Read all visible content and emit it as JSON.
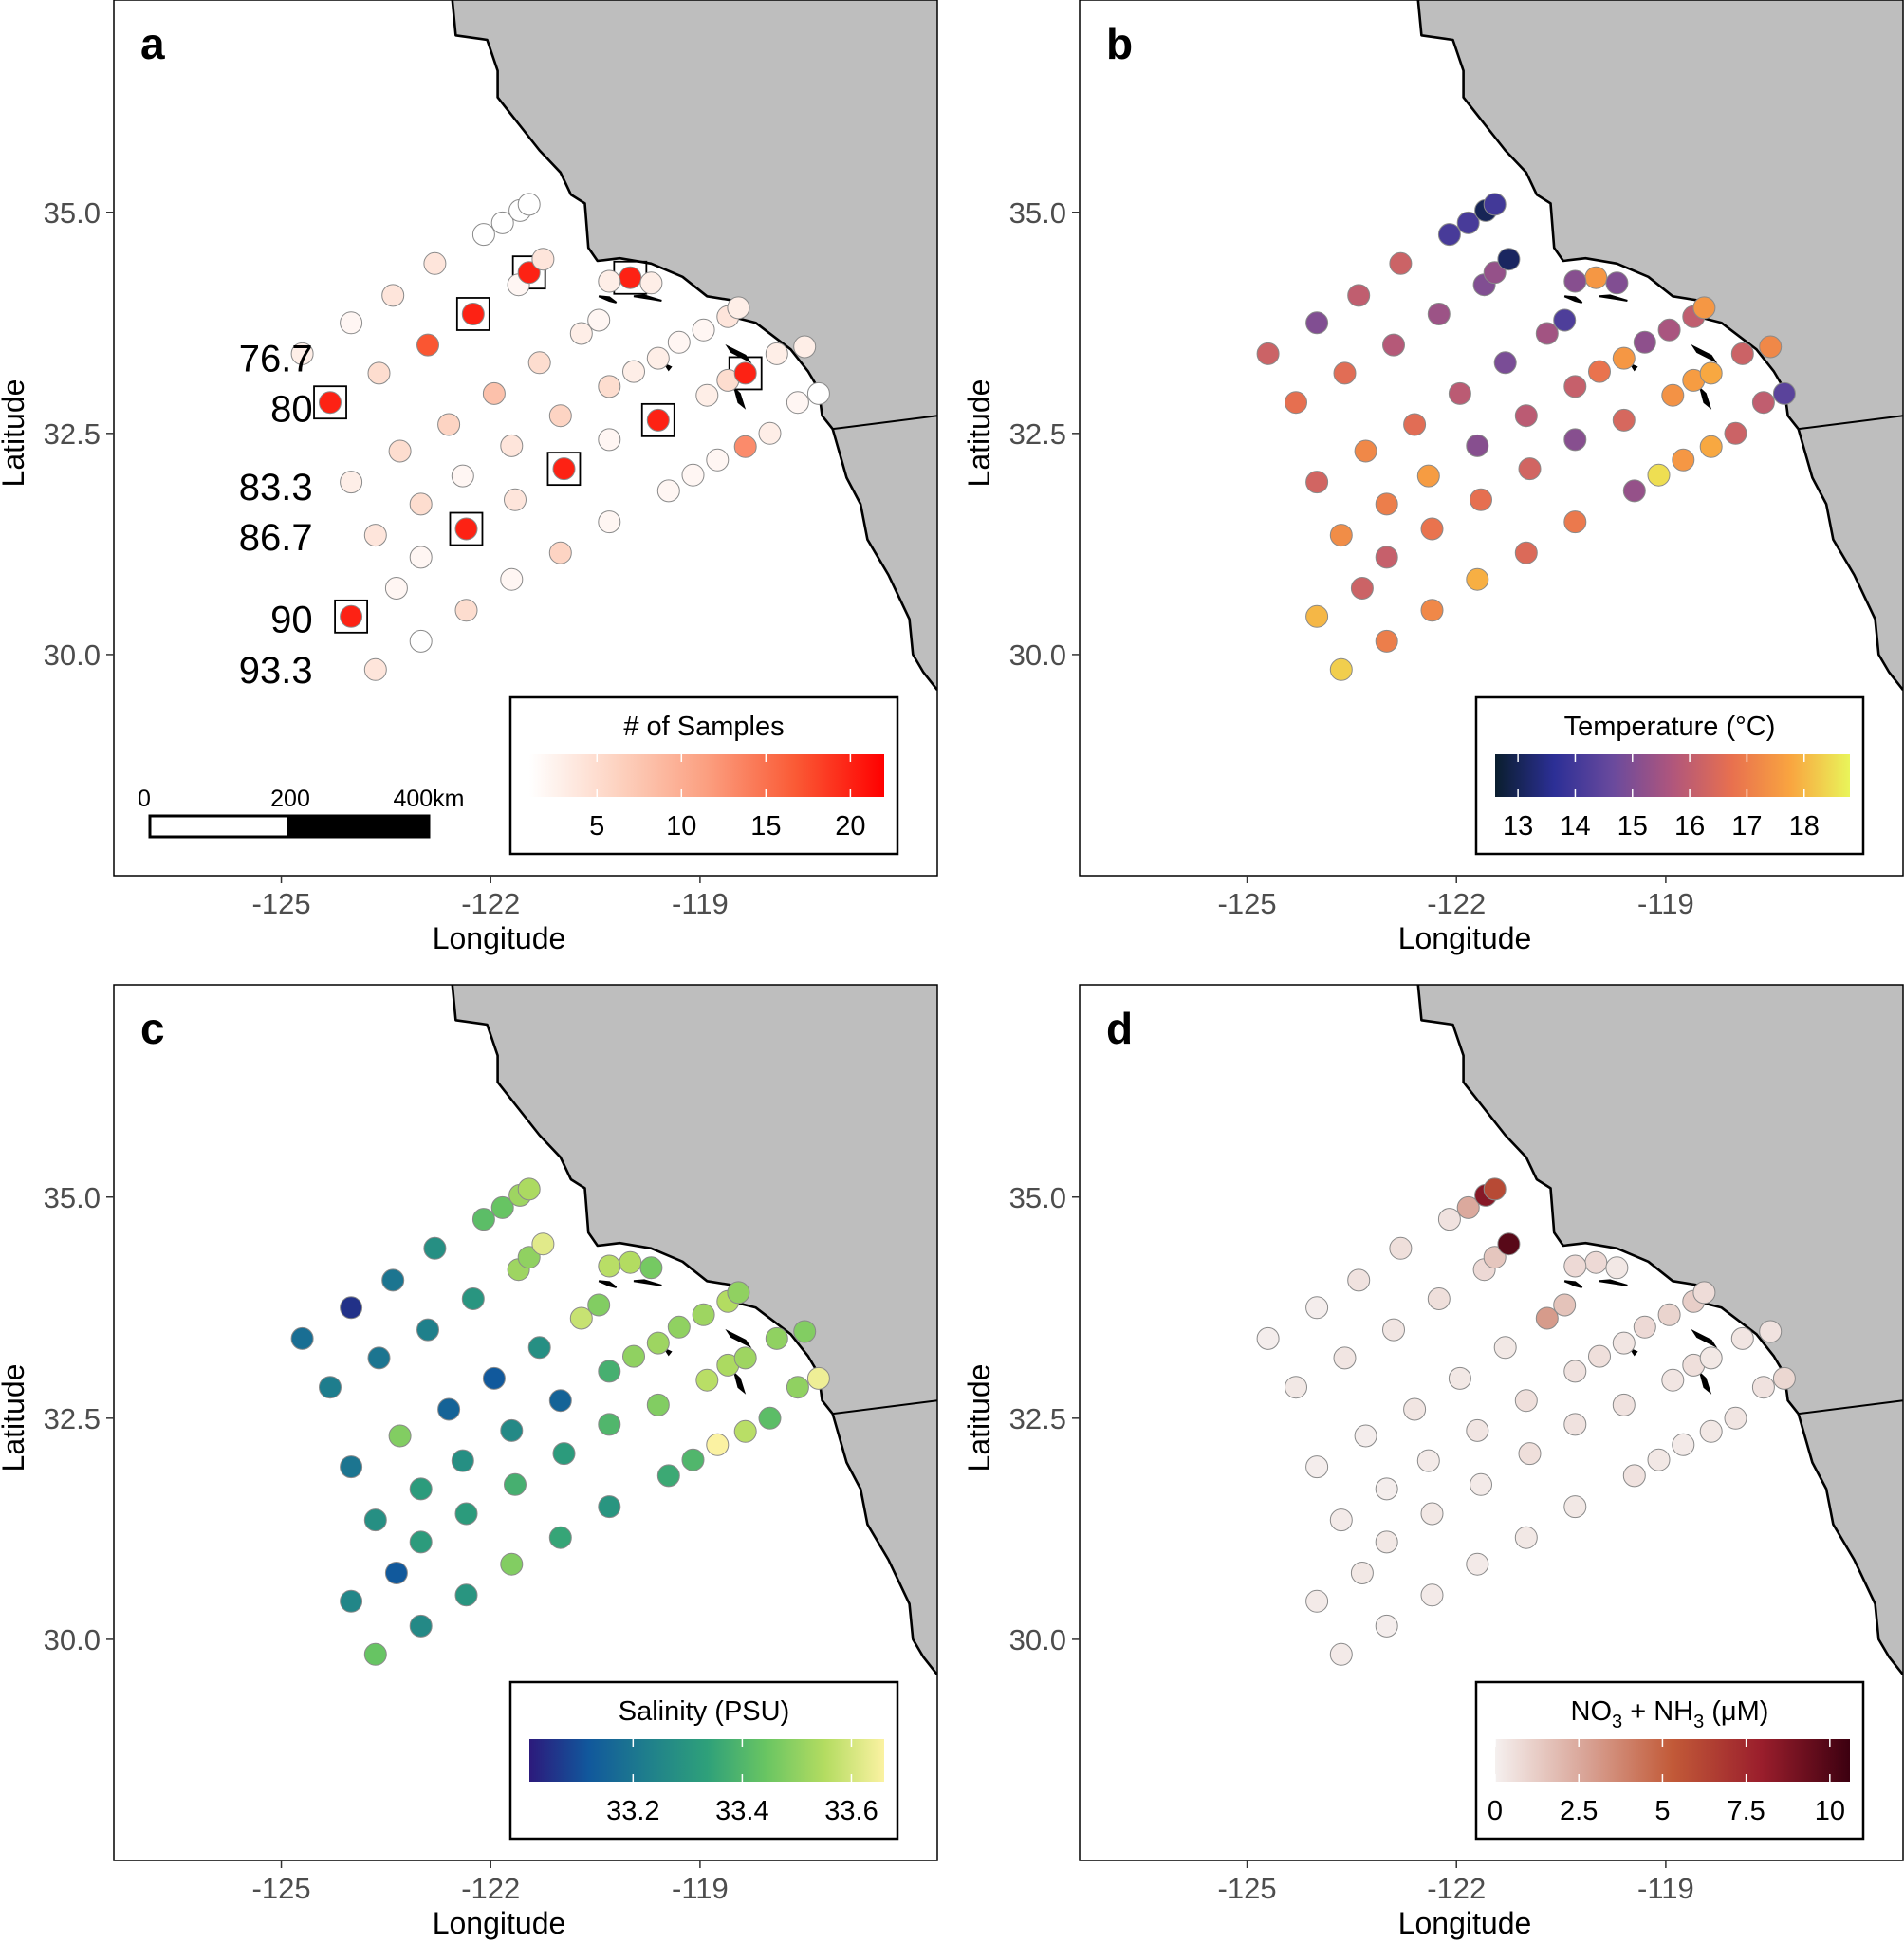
{
  "chart_data": [
    {
      "panel": "a",
      "type": "scatter",
      "xlabel": "Longitude",
      "ylabel": "Latitude",
      "xlim": [
        -127.4,
        -115.6
      ],
      "ylim": [
        27.5,
        37.4
      ],
      "xticks": [
        "-125",
        "-122",
        "-119"
      ],
      "yticks": [
        "30.0",
        "32.5",
        "35.0"
      ],
      "legend": {
        "title": "# of Samples",
        "ticks": [
          "5",
          "10",
          "15",
          "20"
        ],
        "tick_values": [
          5,
          10,
          15,
          20
        ],
        "range": [
          1,
          22
        ],
        "colors": [
          "#ffffff",
          "#fdd2c0",
          "#fb9f80",
          "#fa5a35",
          "#ff0000"
        ],
        "position": "bottom-right"
      },
      "scale_bar": {
        "labels": [
          "0",
          "200",
          "400km"
        ]
      },
      "line_labels": [
        {
          "text": "76.7",
          "lon": -124.55,
          "lat": 33.35
        },
        {
          "text": "80",
          "lon": -124.55,
          "lat": 32.78
        },
        {
          "text": "83.3",
          "lon": -124.55,
          "lat": 31.9
        },
        {
          "text": "86.7",
          "lon": -124.55,
          "lat": 31.33
        },
        {
          "text": "90",
          "lon": -124.55,
          "lat": 30.4
        },
        {
          "text": "93.3",
          "lon": -124.55,
          "lat": 29.83
        }
      ],
      "value_key": "samples"
    },
    {
      "panel": "b",
      "type": "scatter",
      "xlabel": "Longitude",
      "ylabel": "Latitude",
      "xlim": [
        -127.4,
        -115.6
      ],
      "ylim": [
        27.5,
        37.4
      ],
      "xticks": [
        "-125",
        "-122",
        "-119"
      ],
      "yticks": [
        "30.0",
        "32.5",
        "35.0"
      ],
      "legend": {
        "title": "Temperature (°C)",
        "ticks": [
          "13",
          "14",
          "15",
          "16",
          "17",
          "18"
        ],
        "tick_values": [
          13,
          14,
          15,
          16,
          17,
          18
        ],
        "range": [
          12.6,
          18.8
        ],
        "colors": [
          "#0a1e2e",
          "#2c2f96",
          "#6a4a9d",
          "#b0567c",
          "#e8704f",
          "#f9a540",
          "#e9f55a"
        ],
        "position": "bottom-right"
      },
      "value_key": "temperature"
    },
    {
      "panel": "c",
      "type": "scatter",
      "xlabel": "Longitude",
      "ylabel": "Latitude",
      "xlim": [
        -127.4,
        -115.6
      ],
      "ylim": [
        27.5,
        37.4
      ],
      "xticks": [
        "-125",
        "-122",
        "-119"
      ],
      "yticks": [
        "30.0",
        "32.5",
        "35.0"
      ],
      "legend": {
        "title": "Salinity (PSU)",
        "ticks": [
          "33.2",
          "33.4",
          "33.6"
        ],
        "tick_values": [
          33.2,
          33.4,
          33.6
        ],
        "range": [
          33.01,
          33.66
        ],
        "colors": [
          "#2c1a7c",
          "#11589c",
          "#1f7f8c",
          "#2ea07a",
          "#69c562",
          "#b4dc61",
          "#fbf2a2"
        ],
        "position": "bottom-right"
      },
      "value_key": "salinity"
    },
    {
      "panel": "d",
      "type": "scatter",
      "xlabel": "Longitude",
      "ylabel": "Latitude",
      "xlim": [
        -127.4,
        -115.6
      ],
      "ylim": [
        27.5,
        37.4
      ],
      "xticks": [
        "-125",
        "-122",
        "-119"
      ],
      "yticks": [
        "30.0",
        "32.5",
        "35.0"
      ],
      "legend": {
        "title_main": "NO",
        "title_sub1": "3",
        "title_mid": " +  NH",
        "title_sub2": "3",
        "title_end": " (μM)",
        "ticks": [
          "0",
          "2.5",
          "5",
          "7.5",
          "10"
        ],
        "tick_values": [
          0,
          2.5,
          5,
          7.5,
          10
        ],
        "range": [
          0,
          10.6
        ],
        "colors": [
          "#f5f0ef",
          "#d9a598",
          "#c25a38",
          "#9a1e2c",
          "#3c0010"
        ],
        "position": "bottom-right"
      },
      "value_key": "nitrogen"
    }
  ],
  "stations": [
    {
      "lon": -124.7,
      "lat": 33.4,
      "samples": 3,
      "temperature": 16.2,
      "salinity": 33.18,
      "nitrogen": 0.1
    },
    {
      "lon": -124.0,
      "lat": 33.75,
      "samples": 2,
      "temperature": 15.0,
      "salinity": 33.05,
      "nitrogen": 0.1
    },
    {
      "lon": -123.4,
      "lat": 34.06,
      "samples": 4,
      "temperature": 16.0,
      "salinity": 33.2,
      "nitrogen": 0.5
    },
    {
      "lon": -122.8,
      "lat": 34.42,
      "samples": 4,
      "temperature": 16.2,
      "salinity": 33.28,
      "nitrogen": 0.6
    },
    {
      "lon": -122.1,
      "lat": 34.75,
      "samples": 1,
      "temperature": 14.1,
      "salinity": 33.42,
      "nitrogen": 0.5
    },
    {
      "lon": -121.83,
      "lat": 34.88,
      "samples": 1,
      "temperature": 14.1,
      "salinity": 33.44,
      "nitrogen": 2.5
    },
    {
      "lon": -121.58,
      "lat": 35.02,
      "samples": 1,
      "temperature": 13.0,
      "salinity": 33.52,
      "nitrogen": 8.5
    },
    {
      "lon": -121.45,
      "lat": 35.09,
      "samples": 1,
      "temperature": 14.0,
      "salinity": 33.54,
      "nitrogen": 6.0
    },
    {
      "lon": -124.3,
      "lat": 32.85,
      "samples": 20,
      "temperature": 16.7,
      "salinity": 33.22,
      "nitrogen": 0.3
    },
    {
      "lon": -123.6,
      "lat": 33.18,
      "samples": 5,
      "temperature": 16.6,
      "salinity": 33.2,
      "nitrogen": 0.4
    },
    {
      "lon": -122.9,
      "lat": 33.5,
      "samples": 17,
      "temperature": 15.8,
      "salinity": 33.23,
      "nitrogen": 0.4
    },
    {
      "lon": -122.25,
      "lat": 33.85,
      "samples": 20,
      "temperature": 15.4,
      "salinity": 33.3,
      "nitrogen": 0.6
    },
    {
      "lon": -121.6,
      "lat": 34.18,
      "samples": 2,
      "temperature": 15.0,
      "salinity": 33.52,
      "nitrogen": 0.8
    },
    {
      "lon": -121.45,
      "lat": 34.32,
      "samples": 20,
      "temperature": 15.3,
      "salinity": 33.5,
      "nitrogen": 1.5
    },
    {
      "lon": -121.25,
      "lat": 34.47,
      "samples": 4,
      "temperature": 13.1,
      "salinity": 33.62,
      "nitrogen": 9.8
    },
    {
      "lon": -124.0,
      "lat": 31.95,
      "samples": 3,
      "temperature": 16.3,
      "salinity": 33.2,
      "nitrogen": 0.1
    },
    {
      "lon": -123.3,
      "lat": 32.3,
      "samples": 5,
      "temperature": 17.2,
      "salinity": 33.48,
      "nitrogen": 0.1
    },
    {
      "lon": -122.6,
      "lat": 32.6,
      "samples": 6,
      "temperature": 16.6,
      "salinity": 33.15,
      "nitrogen": 0.4
    },
    {
      "lon": -121.95,
      "lat": 32.95,
      "samples": 8,
      "temperature": 15.9,
      "salinity": 33.12,
      "nitrogen": 0.3
    },
    {
      "lon": -121.3,
      "lat": 33.3,
      "samples": 5,
      "temperature": 14.9,
      "salinity": 33.28,
      "nitrogen": 0.3
    },
    {
      "lon": -120.7,
      "lat": 33.63,
      "samples": 3,
      "temperature": 15.5,
      "salinity": 33.58,
      "nitrogen": 3.0
    },
    {
      "lon": -120.45,
      "lat": 33.78,
      "samples": 2,
      "temperature": 14.2,
      "salinity": 33.48,
      "nitrogen": 1.6
    },
    {
      "lon": -120.0,
      "lat": 34.26,
      "samples": 20,
      "temperature": 17.5,
      "salinity": 33.55,
      "nitrogen": 0.8
    },
    {
      "lon": -120.3,
      "lat": 34.22,
      "samples": 3,
      "temperature": 15.1,
      "salinity": 33.56,
      "nitrogen": 0.8
    },
    {
      "lon": -119.7,
      "lat": 34.2,
      "samples": 3,
      "temperature": 15.0,
      "salinity": 33.46,
      "nitrogen": 0.3
    },
    {
      "lon": -123.0,
      "lat": 31.7,
      "samples": 5,
      "temperature": 17.0,
      "salinity": 33.32,
      "nitrogen": 0.1
    },
    {
      "lon": -122.4,
      "lat": 32.02,
      "samples": 2,
      "temperature": 17.6,
      "salinity": 33.28,
      "nitrogen": 0.2
    },
    {
      "lon": -121.7,
      "lat": 32.36,
      "samples": 4,
      "temperature": 15.1,
      "salinity": 33.26,
      "nitrogen": 0.4
    },
    {
      "lon": -121.0,
      "lat": 32.7,
      "samples": 6,
      "temperature": 15.9,
      "salinity": 33.15,
      "nitrogen": 0.6
    },
    {
      "lon": -120.3,
      "lat": 33.03,
      "samples": 5,
      "temperature": 16.1,
      "salinity": 33.38,
      "nitrogen": 0.5
    },
    {
      "lon": -119.95,
      "lat": 33.2,
      "samples": 3,
      "temperature": 16.8,
      "salinity": 33.5,
      "nitrogen": 0.6
    },
    {
      "lon": -119.6,
      "lat": 33.35,
      "samples": 3,
      "temperature": 17.5,
      "salinity": 33.52,
      "nitrogen": 0.4
    },
    {
      "lon": -119.3,
      "lat": 33.53,
      "samples": 2,
      "temperature": 15.2,
      "salinity": 33.5,
      "nitrogen": 0.8
    },
    {
      "lon": -118.95,
      "lat": 33.67,
      "samples": 2,
      "temperature": 15.6,
      "salinity": 33.52,
      "nitrogen": 1.0
    },
    {
      "lon": -118.6,
      "lat": 33.82,
      "samples": 4,
      "temperature": 16.0,
      "salinity": 33.55,
      "nitrogen": 1.2
    },
    {
      "lon": -118.45,
      "lat": 33.92,
      "samples": 3,
      "temperature": 17.5,
      "salinity": 33.5,
      "nitrogen": 0.7
    },
    {
      "lon": -123.65,
      "lat": 31.35,
      "samples": 4,
      "temperature": 17.3,
      "salinity": 33.28,
      "nitrogen": 0.2
    },
    {
      "lon": -123.0,
      "lat": 31.1,
      "samples": 2,
      "temperature": 16.1,
      "salinity": 33.32,
      "nitrogen": 0.3
    },
    {
      "lon": -122.35,
      "lat": 31.42,
      "samples": 20,
      "temperature": 16.8,
      "salinity": 33.32,
      "nitrogen": 0.3
    },
    {
      "lon": -121.65,
      "lat": 31.75,
      "samples": 4,
      "temperature": 16.7,
      "salinity": 33.38,
      "nitrogen": 0.2
    },
    {
      "lon": -120.95,
      "lat": 32.1,
      "samples": 20,
      "temperature": 16.3,
      "salinity": 33.32,
      "nitrogen": 0.6
    },
    {
      "lon": -120.3,
      "lat": 32.43,
      "samples": 2,
      "temperature": 15.1,
      "salinity": 33.4,
      "nitrogen": 0.5
    },
    {
      "lon": -119.6,
      "lat": 32.65,
      "samples": 20,
      "temperature": 16.4,
      "salinity": 33.48,
      "nitrogen": 0.5
    },
    {
      "lon": -118.9,
      "lat": 32.93,
      "samples": 3,
      "temperature": 17.4,
      "salinity": 33.56,
      "nitrogen": 0.4
    },
    {
      "lon": -118.6,
      "lat": 33.1,
      "samples": 5,
      "temperature": 17.6,
      "salinity": 33.54,
      "nitrogen": 0.6
    },
    {
      "lon": -118.35,
      "lat": 33.18,
      "samples": 20,
      "temperature": 17.8,
      "salinity": 33.52,
      "nitrogen": 0.3
    },
    {
      "lon": -117.9,
      "lat": 33.4,
      "samples": 3,
      "temperature": 16.2,
      "salinity": 33.5,
      "nitrogen": 0.4
    },
    {
      "lon": -117.5,
      "lat": 33.48,
      "samples": 3,
      "temperature": 17.2,
      "salinity": 33.48,
      "nitrogen": 0.5
    },
    {
      "lon": -117.6,
      "lat": 32.85,
      "samples": 2,
      "temperature": 16.0,
      "salinity": 33.5,
      "nitrogen": 0.5
    },
    {
      "lon": -117.3,
      "lat": 32.95,
      "samples": 1,
      "temperature": 14.4,
      "salinity": 33.64,
      "nitrogen": 0.9
    },
    {
      "lon": -118.0,
      "lat": 32.5,
      "samples": 3,
      "temperature": 16.2,
      "salinity": 33.42,
      "nitrogen": 0.4
    },
    {
      "lon": -118.35,
      "lat": 32.35,
      "samples": 13,
      "temperature": 17.8,
      "salinity": 33.56,
      "nitrogen": 0.3
    },
    {
      "lon": -118.75,
      "lat": 32.2,
      "samples": 2,
      "temperature": 17.5,
      "salinity": 33.66,
      "nitrogen": 0.2
    },
    {
      "lon": -119.1,
      "lat": 32.03,
      "samples": 2,
      "temperature": 18.5,
      "salinity": 33.4,
      "nitrogen": 0.3
    },
    {
      "lon": -119.45,
      "lat": 31.85,
      "samples": 2,
      "temperature": 15.3,
      "salinity": 33.36,
      "nitrogen": 0.5
    },
    {
      "lon": -120.3,
      "lat": 31.5,
      "samples": 2,
      "temperature": 16.9,
      "salinity": 33.3,
      "nitrogen": 0.3
    },
    {
      "lon": -121.0,
      "lat": 31.15,
      "samples": 6,
      "temperature": 16.5,
      "salinity": 33.35,
      "nitrogen": 0.3
    },
    {
      "lon": -121.7,
      "lat": 30.85,
      "samples": 2,
      "temperature": 17.9,
      "salinity": 33.48,
      "nitrogen": 0.2
    },
    {
      "lon": -122.35,
      "lat": 30.5,
      "samples": 5,
      "temperature": 17.2,
      "salinity": 33.3,
      "nitrogen": 0.2
    },
    {
      "lon": -123.0,
      "lat": 30.15,
      "samples": 1,
      "temperature": 17.0,
      "salinity": 33.26,
      "nitrogen": 0.1
    },
    {
      "lon": -123.65,
      "lat": 29.83,
      "samples": 4,
      "temperature": 18.3,
      "salinity": 33.44,
      "nitrogen": 0.2
    },
    {
      "lon": -124.0,
      "lat": 30.43,
      "samples": 20,
      "temperature": 18.0,
      "salinity": 33.25,
      "nitrogen": 0.2
    },
    {
      "lon": -123.35,
      "lat": 30.75,
      "samples": 2,
      "temperature": 16.2,
      "salinity": 33.12,
      "nitrogen": 0.3
    }
  ],
  "boxed_stations_panel_a": [
    {
      "lon": -124.3,
      "lat": 32.85
    },
    {
      "lon": -122.25,
      "lat": 33.85
    },
    {
      "lon": -121.45,
      "lat": 34.32
    },
    {
      "lon": -120.0,
      "lat": 34.26
    },
    {
      "lon": -119.6,
      "lat": 32.65
    },
    {
      "lon": -118.35,
      "lat": 33.18
    },
    {
      "lon": -120.95,
      "lat": 32.1
    },
    {
      "lon": -122.35,
      "lat": 31.42
    },
    {
      "lon": -124.0,
      "lat": 30.43
    }
  ],
  "map": {
    "land_color": "#bebebe",
    "coast": [
      [
        -122.55,
        37.4
      ],
      [
        -122.5,
        37.0
      ],
      [
        -122.05,
        36.95
      ],
      [
        -121.9,
        36.6
      ],
      [
        -121.9,
        36.3
      ],
      [
        -121.6,
        36.0
      ],
      [
        -121.3,
        35.7
      ],
      [
        -121.0,
        35.45
      ],
      [
        -120.85,
        35.2
      ],
      [
        -120.65,
        35.1
      ],
      [
        -120.63,
        34.9
      ],
      [
        -120.6,
        34.6
      ],
      [
        -120.47,
        34.45
      ],
      [
        -120.15,
        34.48
      ],
      [
        -119.7,
        34.42
      ],
      [
        -119.25,
        34.27
      ],
      [
        -118.9,
        34.05
      ],
      [
        -118.5,
        34.0
      ],
      [
        -118.45,
        33.8
      ],
      [
        -118.2,
        33.75
      ],
      [
        -117.95,
        33.6
      ],
      [
        -117.7,
        33.45
      ],
      [
        -117.45,
        33.2
      ],
      [
        -117.3,
        33.0
      ],
      [
        -117.25,
        32.7
      ],
      [
        -117.1,
        32.55
      ],
      [
        -116.9,
        32.0
      ],
      [
        -116.7,
        31.7
      ],
      [
        -116.6,
        31.3
      ],
      [
        -116.3,
        30.9
      ],
      [
        -116.0,
        30.4
      ],
      [
        -115.95,
        30.0
      ],
      [
        -115.8,
        29.8
      ],
      [
        -115.6,
        29.6
      ]
    ],
    "border": [
      [
        -117.1,
        32.55
      ],
      [
        -115.6,
        32.7
      ]
    ],
    "islands": [
      [
        [
          -120.45,
          34.05
        ],
        [
          -120.3,
          34.0
        ],
        [
          -120.2,
          33.98
        ],
        [
          -120.3,
          34.04
        ]
      ],
      [
        [
          -119.95,
          34.05
        ],
        [
          -119.7,
          34.02
        ],
        [
          -119.55,
          34.0
        ],
        [
          -119.8,
          34.06
        ]
      ],
      [
        [
          -118.6,
          33.48
        ],
        [
          -118.35,
          33.38
        ],
        [
          -118.3,
          33.32
        ],
        [
          -118.55,
          33.42
        ]
      ],
      [
        [
          -118.5,
          33.0
        ],
        [
          -118.45,
          32.85
        ],
        [
          -118.37,
          32.8
        ],
        [
          -118.43,
          32.95
        ]
      ],
      [
        [
          -119.5,
          33.28
        ],
        [
          -119.42,
          33.25
        ],
        [
          -119.45,
          33.22
        ]
      ]
    ]
  }
}
